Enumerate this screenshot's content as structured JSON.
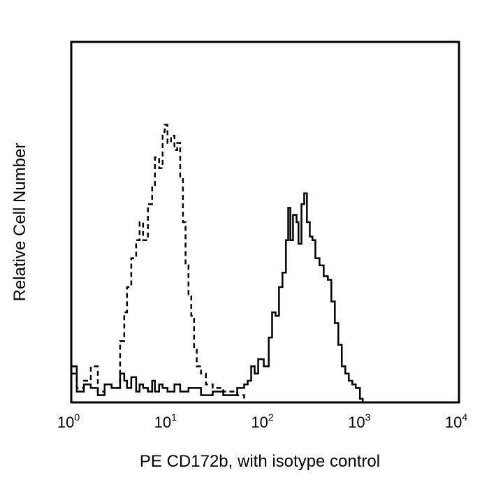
{
  "chart_data": {
    "type": "line",
    "title": "",
    "xlabel": "PE CD172b, with isotype control",
    "ylabel": "Relative Cell Number",
    "xscale": "log",
    "xlim": [
      1,
      10000
    ],
    "ylim": [
      0,
      100
    ],
    "grid": false,
    "x_ticks": [
      {
        "base": "10",
        "exp": "0",
        "value": 1
      },
      {
        "base": "10",
        "exp": "1",
        "value": 10
      },
      {
        "base": "10",
        "exp": "2",
        "value": 100
      },
      {
        "base": "10",
        "exp": "3",
        "value": 1000
      },
      {
        "base": "10",
        "exp": "4",
        "value": 10000
      }
    ],
    "series": [
      {
        "style": "dashed",
        "color": "#000000",
        "points": [
          [
            1.0,
            8
          ],
          [
            1.14,
            4
          ],
          [
            1.35,
            6
          ],
          [
            1.59,
            10
          ],
          [
            1.88,
            3
          ],
          [
            2.21,
            5
          ],
          [
            2.61,
            4
          ],
          [
            3.19,
            17
          ],
          [
            3.52,
            25
          ],
          [
            3.76,
            32
          ],
          [
            4.16,
            40
          ],
          [
            4.67,
            45
          ],
          [
            5.07,
            50
          ],
          [
            5.51,
            45
          ],
          [
            6.18,
            55
          ],
          [
            6.83,
            60
          ],
          [
            7.3,
            68
          ],
          [
            8.06,
            65
          ],
          [
            8.76,
            75
          ],
          [
            9.2,
            77
          ],
          [
            9.84,
            72
          ],
          [
            10.7,
            74
          ],
          [
            11.6,
            70
          ],
          [
            12.4,
            72
          ],
          [
            13.3,
            62
          ],
          [
            14.2,
            50
          ],
          [
            15.1,
            38
          ],
          [
            16.2,
            30
          ],
          [
            17.3,
            24
          ],
          [
            18.5,
            15
          ],
          [
            19.7,
            10
          ],
          [
            21.8,
            8
          ],
          [
            24.5,
            5
          ],
          [
            28.8,
            4
          ],
          [
            37.0,
            3
          ],
          [
            51.5,
            2
          ],
          [
            60.8,
            1
          ]
        ]
      },
      {
        "style": "solid",
        "color": "#000000",
        "points": [
          [
            1.0,
            10
          ],
          [
            1.14,
            3
          ],
          [
            1.35,
            5
          ],
          [
            1.59,
            4
          ],
          [
            1.88,
            2
          ],
          [
            2.21,
            5
          ],
          [
            2.61,
            4
          ],
          [
            3.19,
            8
          ],
          [
            3.52,
            6
          ],
          [
            3.76,
            4
          ],
          [
            4.16,
            7
          ],
          [
            4.67,
            3
          ],
          [
            5.07,
            5
          ],
          [
            5.51,
            4
          ],
          [
            6.18,
            3
          ],
          [
            6.83,
            6
          ],
          [
            7.3,
            3
          ],
          [
            8.06,
            5
          ],
          [
            8.76,
            4
          ],
          [
            9.84,
            3
          ],
          [
            11.6,
            5
          ],
          [
            13.3,
            3
          ],
          [
            16.2,
            4
          ],
          [
            21.8,
            2
          ],
          [
            28.8,
            3
          ],
          [
            37.0,
            2
          ],
          [
            51.5,
            4
          ],
          [
            60.8,
            5
          ],
          [
            66.1,
            6
          ],
          [
            71.8,
            10
          ],
          [
            78.0,
            8
          ],
          [
            84.8,
            12
          ],
          [
            96.8,
            10
          ],
          [
            109,
            18
          ],
          [
            118,
            25
          ],
          [
            128,
            24
          ],
          [
            139,
            32
          ],
          [
            151,
            36
          ],
          [
            164,
            45
          ],
          [
            173,
            54
          ],
          [
            182,
            45
          ],
          [
            194,
            52
          ],
          [
            211,
            50
          ],
          [
            221,
            44
          ],
          [
            237,
            55
          ],
          [
            253,
            58
          ],
          [
            270,
            50
          ],
          [
            289,
            46
          ],
          [
            308,
            45
          ],
          [
            330,
            40
          ],
          [
            364,
            38
          ],
          [
            402,
            35
          ],
          [
            444,
            34
          ],
          [
            482,
            28
          ],
          [
            524,
            22
          ],
          [
            569,
            16
          ],
          [
            618,
            10
          ],
          [
            672,
            8
          ],
          [
            730,
            6
          ],
          [
            793,
            5
          ],
          [
            861,
            4
          ],
          [
            951,
            1
          ],
          [
            1016,
            0
          ]
        ]
      }
    ]
  }
}
